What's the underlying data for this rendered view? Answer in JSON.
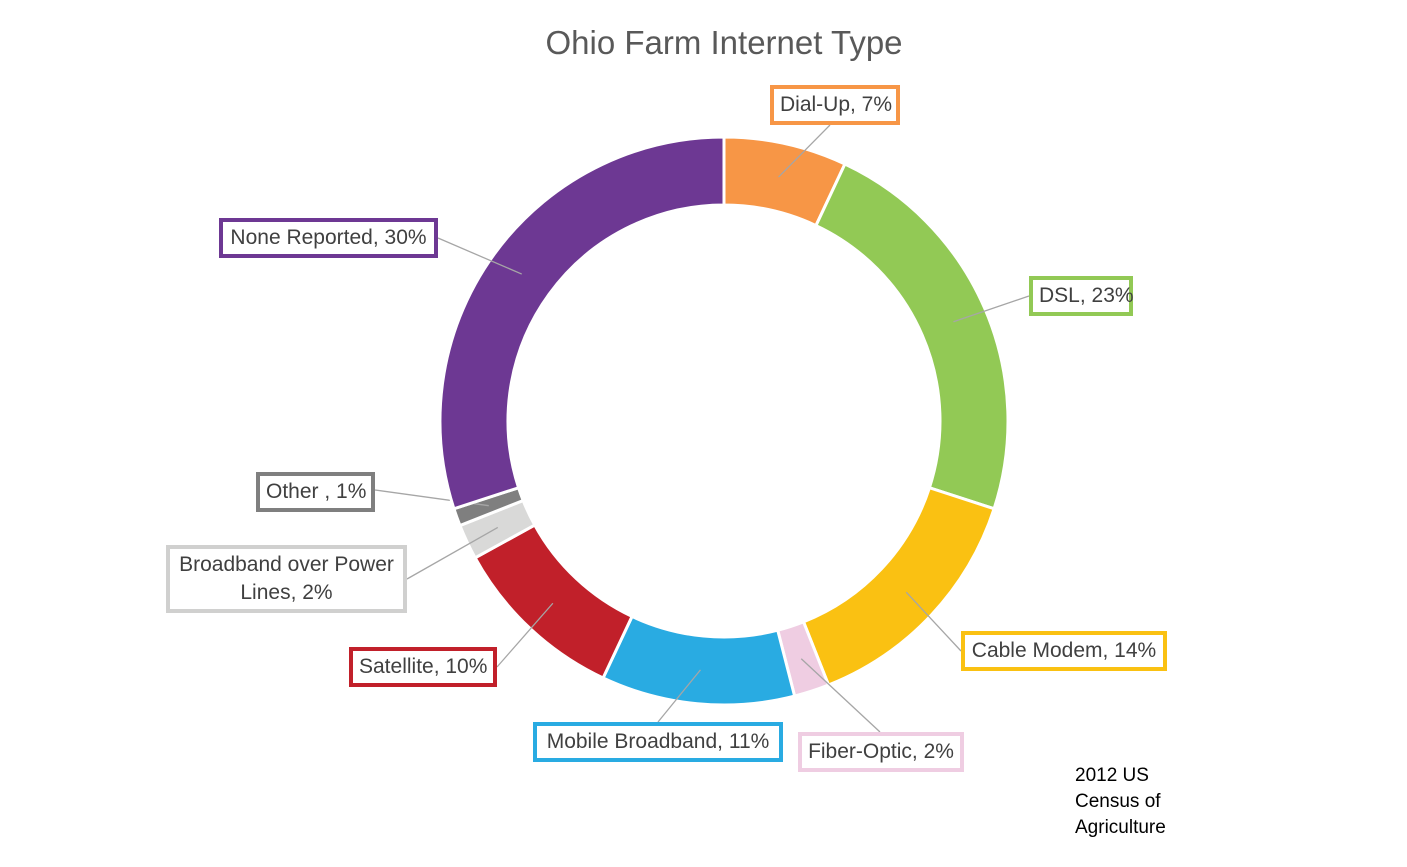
{
  "chart_data": {
    "type": "pie",
    "title": "Ohio Farm Internet Type",
    "slices": [
      {
        "label": "Dial-Up, 7%",
        "name": "Dial-Up",
        "value": 7,
        "color": "#f79646"
      },
      {
        "label": "DSL, 23%",
        "name": "DSL",
        "value": 23,
        "color": "#92c955"
      },
      {
        "label": "Cable Modem, 14%",
        "name": "Cable Modem",
        "value": 14,
        "color": "#fac112"
      },
      {
        "label": "Fiber-Optic, 2%",
        "name": "Fiber-Optic",
        "value": 2,
        "color": "#efcde2"
      },
      {
        "label": "Mobile Broadband, 11%",
        "name": "Mobile Broadband",
        "value": 11,
        "color": "#29abe2"
      },
      {
        "label": "Satellite, 10%",
        "name": "Satellite",
        "value": 10,
        "color": "#c1202a"
      },
      {
        "label": "Broadband over Power Lines, 2%",
        "name": "Broadband over Power Lines",
        "value": 2,
        "color": "#d9d9d8"
      },
      {
        "label": "Other , 1%",
        "name": "Other",
        "value": 1,
        "color": "#7f7f7f"
      },
      {
        "label": "None Reported, 30%",
        "name": "None Reported",
        "value": 30,
        "color": "#6d3893"
      }
    ],
    "legend": "none",
    "data_labels": "outside-with-leader-lines"
  },
  "source_note": "2012 US\nCensus of\nAgriculture"
}
